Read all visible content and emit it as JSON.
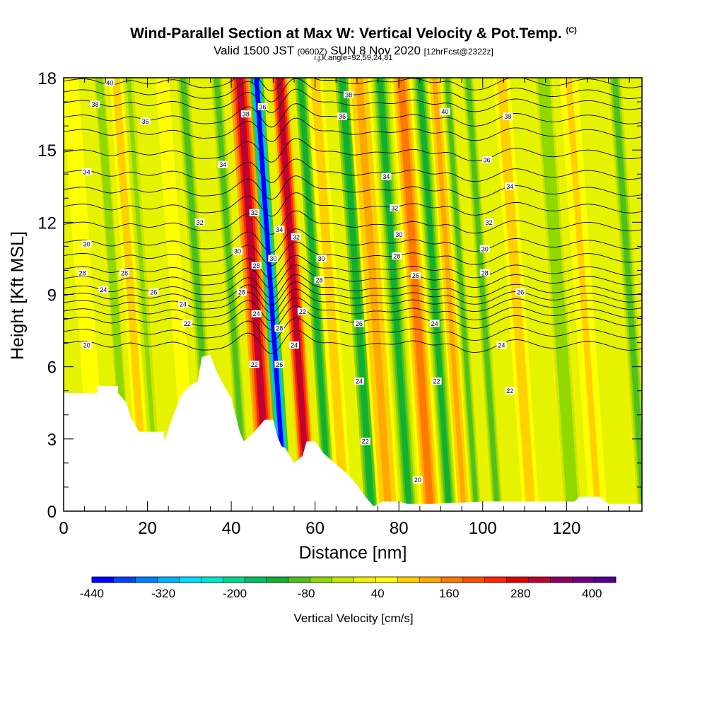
{
  "chart_data": {
    "type": "heatmap",
    "title": "Wind-Parallel Section at Max W: Vertical Velocity & Pot.Temp.",
    "title_mark": "(C)",
    "subtitle_main": "Valid 1500 JST",
    "subtitle_zulu": "(0600Z)",
    "subtitle_date": "SUN 8 Nov 2020",
    "subtitle_fcst": "[12hrFcst@2322z]",
    "subtitle2": "i,j,k,angle=92,59,24,81",
    "xlabel": "Distance [nm]",
    "ylabel": "Height [Kft MSL]",
    "xlim": [
      0,
      138
    ],
    "ylim": [
      0,
      18
    ],
    "xticks": [
      0,
      20,
      40,
      60,
      80,
      100,
      120
    ],
    "yticks": [
      0,
      3,
      6,
      9,
      12,
      15,
      18
    ],
    "colorbar": {
      "label": "Vertical Velocity [cm/s]",
      "min": -440,
      "max": 440,
      "step": 40,
      "tick_values": [
        -440,
        -320,
        -200,
        -80,
        40,
        160,
        280,
        400
      ],
      "tick_labels": [
        "-440",
        "-320",
        "-200",
        "-80",
        "40",
        "160",
        "280",
        "400"
      ],
      "colors": [
        "#0000ff",
        "#0044ff",
        "#0080ff",
        "#00b4ff",
        "#00e0ff",
        "#00e8c8",
        "#00d890",
        "#00c060",
        "#10b030",
        "#50c020",
        "#90d800",
        "#c8e800",
        "#f0f000",
        "#ffff00",
        "#ffd000",
        "#ffa800",
        "#ff7800",
        "#ff5000",
        "#ff2800",
        "#e00000",
        "#c00030",
        "#900060",
        "#700080",
        "#500090"
      ]
    },
    "terrain_kft": [
      [
        0,
        4.9
      ],
      [
        8,
        4.9
      ],
      [
        8,
        5.2
      ],
      [
        13,
        5.2
      ],
      [
        13,
        4.9
      ],
      [
        15,
        4.5
      ],
      [
        16,
        3.9
      ],
      [
        18,
        3.3
      ],
      [
        24,
        3.3
      ],
      [
        24,
        2.9
      ],
      [
        25,
        3.4
      ],
      [
        26,
        3.9
      ],
      [
        28,
        4.8
      ],
      [
        30,
        5.2
      ],
      [
        32,
        5.4
      ],
      [
        33,
        6.4
      ],
      [
        35,
        6.5
      ],
      [
        36,
        6.0
      ],
      [
        38,
        5.3
      ],
      [
        40,
        4.7
      ],
      [
        42,
        3.3
      ],
      [
        43,
        2.9
      ],
      [
        45,
        3.2
      ],
      [
        46,
        3.4
      ],
      [
        48,
        3.8
      ],
      [
        50,
        3.8
      ],
      [
        51,
        3.1
      ],
      [
        52,
        2.7
      ],
      [
        53,
        2.6
      ],
      [
        55,
        2.0
      ],
      [
        57,
        2.3
      ],
      [
        58,
        2.9
      ],
      [
        60,
        2.9
      ],
      [
        62,
        2.4
      ],
      [
        64,
        2.1
      ],
      [
        66,
        1.8
      ],
      [
        68,
        1.5
      ],
      [
        70,
        1.1
      ],
      [
        72,
        0.6
      ],
      [
        74,
        0.2
      ],
      [
        76,
        0.4
      ],
      [
        80,
        0.4
      ],
      [
        82,
        0.3
      ],
      [
        88,
        0.3
      ],
      [
        100,
        0.4
      ],
      [
        122,
        0.4
      ],
      [
        123,
        0.6
      ],
      [
        128,
        0.6
      ],
      [
        130,
        0.3
      ],
      [
        138,
        0.3
      ]
    ],
    "w_bands": [
      {
        "x": 40,
        "width": 1.8,
        "w": -110
      },
      {
        "x": 45.5,
        "width": 2.4,
        "w": 320
      },
      {
        "x": 49.5,
        "width": 1.6,
        "w": -440
      },
      {
        "x": 55,
        "width": 2.1,
        "w": 300
      },
      {
        "x": 60,
        "width": 1.8,
        "w": -120
      },
      {
        "x": 63.5,
        "width": 1.9,
        "w": 100
      },
      {
        "x": 70,
        "width": 2.2,
        "w": -120
      },
      {
        "x": 74,
        "width": 2.6,
        "w": 130
      },
      {
        "x": 79,
        "width": 2.0,
        "w": -130
      },
      {
        "x": 84,
        "width": 2.5,
        "w": 150
      },
      {
        "x": 88.5,
        "width": 1.8,
        "w": -140
      },
      {
        "x": 92,
        "width": 1.6,
        "w": 120
      },
      {
        "x": 95,
        "width": 1.5,
        "w": -100
      },
      {
        "x": 100,
        "width": 1.7,
        "w": -90
      },
      {
        "x": 108,
        "width": 2.0,
        "w": 90
      },
      {
        "x": 118,
        "width": 2.5,
        "w": -70
      },
      {
        "x": 124,
        "width": 2.2,
        "w": 80
      },
      {
        "x": 135,
        "width": 2.0,
        "w": -80
      },
      {
        "x": 12,
        "width": 1.6,
        "w": -70
      },
      {
        "x": 16,
        "width": 1.6,
        "w": 90
      },
      {
        "x": 19,
        "width": 1.5,
        "w": -60
      },
      {
        "x": 27,
        "width": 1.6,
        "w": 70
      },
      {
        "x": 32,
        "width": 2.0,
        "w": -80
      },
      {
        "x": 5,
        "width": 2.0,
        "w": 60
      }
    ],
    "theta_levels": [
      20,
      22,
      24,
      26,
      28,
      30,
      32,
      34,
      36,
      38,
      40
    ],
    "theta_level_heights_kft": [
      6.9,
      7.9,
      8.6,
      9.2,
      10.0,
      11.1,
      12.6,
      14.0,
      15.7,
      16.9,
      17.8
    ],
    "contour_labels": [
      {
        "x": 11,
        "y": 17.8,
        "text": "40"
      },
      {
        "x": 7.5,
        "y": 16.9,
        "text": "38"
      },
      {
        "x": 19.5,
        "y": 16.2,
        "text": "36"
      },
      {
        "x": 5.5,
        "y": 14.1,
        "text": "34"
      },
      {
        "x": 38,
        "y": 14.4,
        "text": "34"
      },
      {
        "x": 32.5,
        "y": 12.0,
        "text": "32"
      },
      {
        "x": 5.5,
        "y": 11.1,
        "text": "30"
      },
      {
        "x": 4.5,
        "y": 9.9,
        "text": "28"
      },
      {
        "x": 14.5,
        "y": 9.9,
        "text": "28"
      },
      {
        "x": 9.5,
        "y": 9.2,
        "text": "24"
      },
      {
        "x": 21.5,
        "y": 9.1,
        "text": "26"
      },
      {
        "x": 28.5,
        "y": 8.6,
        "text": "24"
      },
      {
        "x": 29.5,
        "y": 7.8,
        "text": "22"
      },
      {
        "x": 5.5,
        "y": 6.9,
        "text": "20"
      },
      {
        "x": 43.5,
        "y": 16.5,
        "text": "38"
      },
      {
        "x": 47.5,
        "y": 16.8,
        "text": "36"
      },
      {
        "x": 45.5,
        "y": 12.4,
        "text": "32"
      },
      {
        "x": 41.5,
        "y": 10.8,
        "text": "30"
      },
      {
        "x": 46,
        "y": 10.2,
        "text": "28"
      },
      {
        "x": 42.5,
        "y": 9.1,
        "text": "28"
      },
      {
        "x": 46,
        "y": 8.2,
        "text": "24"
      },
      {
        "x": 45.5,
        "y": 6.1,
        "text": "22"
      },
      {
        "x": 51.5,
        "y": 11.7,
        "text": "34"
      },
      {
        "x": 50,
        "y": 10.5,
        "text": "30"
      },
      {
        "x": 51.5,
        "y": 7.6,
        "text": "28"
      },
      {
        "x": 51.5,
        "y": 6.1,
        "text": "26"
      },
      {
        "x": 55.5,
        "y": 11.4,
        "text": "32"
      },
      {
        "x": 57,
        "y": 8.3,
        "text": "22"
      },
      {
        "x": 55,
        "y": 6.9,
        "text": "24"
      },
      {
        "x": 68,
        "y": 17.3,
        "text": "38"
      },
      {
        "x": 66.5,
        "y": 16.4,
        "text": "36"
      },
      {
        "x": 61.5,
        "y": 10.5,
        "text": "30"
      },
      {
        "x": 61,
        "y": 9.6,
        "text": "28"
      },
      {
        "x": 70.5,
        "y": 7.8,
        "text": "26"
      },
      {
        "x": 70.5,
        "y": 5.4,
        "text": "24"
      },
      {
        "x": 72,
        "y": 2.9,
        "text": "22"
      },
      {
        "x": 77,
        "y": 13.9,
        "text": "34"
      },
      {
        "x": 79,
        "y": 12.6,
        "text": "32"
      },
      {
        "x": 80,
        "y": 11.5,
        "text": "30"
      },
      {
        "x": 79.5,
        "y": 10.6,
        "text": "28"
      },
      {
        "x": 84,
        "y": 9.8,
        "text": "26"
      },
      {
        "x": 88.5,
        "y": 7.8,
        "text": "24"
      },
      {
        "x": 89,
        "y": 5.4,
        "text": "22"
      },
      {
        "x": 84.5,
        "y": 1.3,
        "text": "20"
      },
      {
        "x": 91,
        "y": 16.6,
        "text": "40"
      },
      {
        "x": 106,
        "y": 16.4,
        "text": "38"
      },
      {
        "x": 101,
        "y": 14.6,
        "text": "36"
      },
      {
        "x": 106.5,
        "y": 13.5,
        "text": "34"
      },
      {
        "x": 101.5,
        "y": 12.0,
        "text": "32"
      },
      {
        "x": 100.5,
        "y": 10.9,
        "text": "30"
      },
      {
        "x": 100.5,
        "y": 9.9,
        "text": "28"
      },
      {
        "x": 109,
        "y": 9.1,
        "text": "26"
      },
      {
        "x": 104.5,
        "y": 6.9,
        "text": "24"
      },
      {
        "x": 106.5,
        "y": 5.0,
        "text": "22"
      }
    ]
  }
}
